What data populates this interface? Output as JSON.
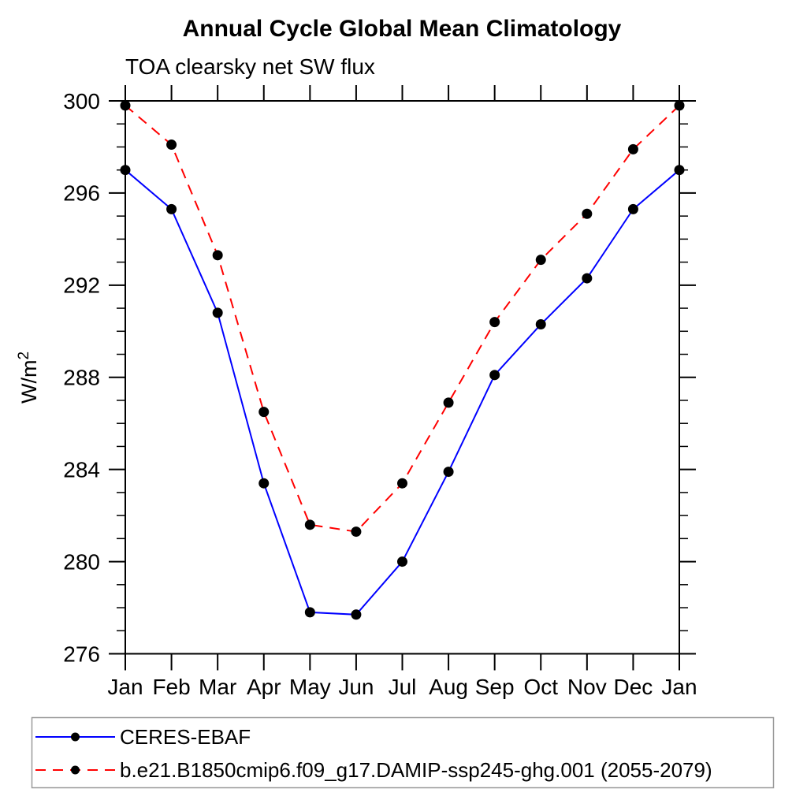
{
  "chart_data": {
    "type": "line",
    "title": "Annual Cycle Global Mean Climatology",
    "subtitle": "TOA clearsky net SW flux",
    "ylabel": "W/m²",
    "xlabel": "",
    "x_tick_labels": [
      "Jan",
      "Feb",
      "Mar",
      "Apr",
      "May",
      "Jun",
      "Jul",
      "Aug",
      "Sep",
      "Oct",
      "Nov",
      "Dec",
      "Jan"
    ],
    "ylim": [
      276,
      300
    ],
    "y_major_ticks": [
      276,
      280,
      284,
      288,
      292,
      296,
      300
    ],
    "y_minor_step": 1,
    "grid": false,
    "axis_color": "#000000",
    "legend_position": "bottom-left-box",
    "legend_border_color": "#999999",
    "marker_shape": "filled-circle",
    "series": [
      {
        "name": "CERES-EBAF",
        "color": "#0000ff",
        "line_style": "solid",
        "marker_color": "#000000",
        "values": [
          297.0,
          295.3,
          290.8,
          283.4,
          277.8,
          277.7,
          280.0,
          283.9,
          288.1,
          290.3,
          292.3,
          295.3,
          297.0
        ]
      },
      {
        "name": "b.e21.B1850cmip6.f09_g17.DAMIP-ssp245-ghg.001 (2055-2079)",
        "color": "#ff0000",
        "line_style": "dashed",
        "marker_color": "#000000",
        "values": [
          299.8,
          298.1,
          293.3,
          286.5,
          281.6,
          281.3,
          283.4,
          286.9,
          290.4,
          293.1,
          295.1,
          297.9,
          299.8
        ]
      }
    ]
  }
}
